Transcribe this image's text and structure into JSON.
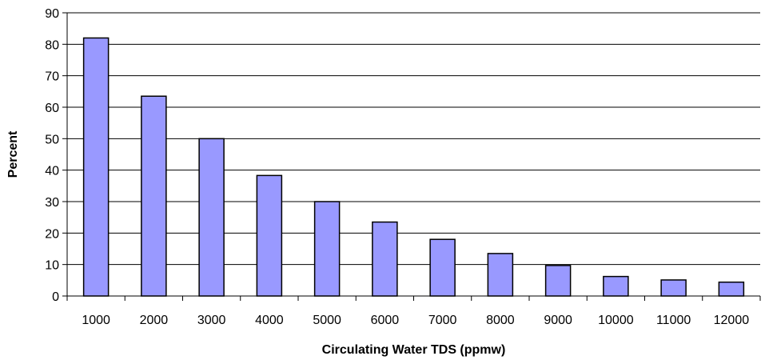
{
  "chart_data": {
    "type": "bar",
    "title": "",
    "xlabel": "Circulating Water TDS (ppmw)",
    "ylabel": "Percent",
    "categories": [
      "1000",
      "2000",
      "3000",
      "4000",
      "5000",
      "6000",
      "7000",
      "8000",
      "9000",
      "10000",
      "11000",
      "12000"
    ],
    "values": [
      82,
      63.5,
      50,
      38.3,
      30,
      23.5,
      18,
      13.5,
      9.7,
      6.2,
      5.1,
      4.4
    ],
    "ylim": [
      0,
      90
    ],
    "yticks": [
      0,
      10,
      20,
      30,
      40,
      50,
      60,
      70,
      80,
      90
    ],
    "grid": true,
    "legend": "none",
    "colors": {
      "bar_fill": "#9999ff",
      "bar_stroke": "#000000",
      "grid": "#000000"
    }
  }
}
